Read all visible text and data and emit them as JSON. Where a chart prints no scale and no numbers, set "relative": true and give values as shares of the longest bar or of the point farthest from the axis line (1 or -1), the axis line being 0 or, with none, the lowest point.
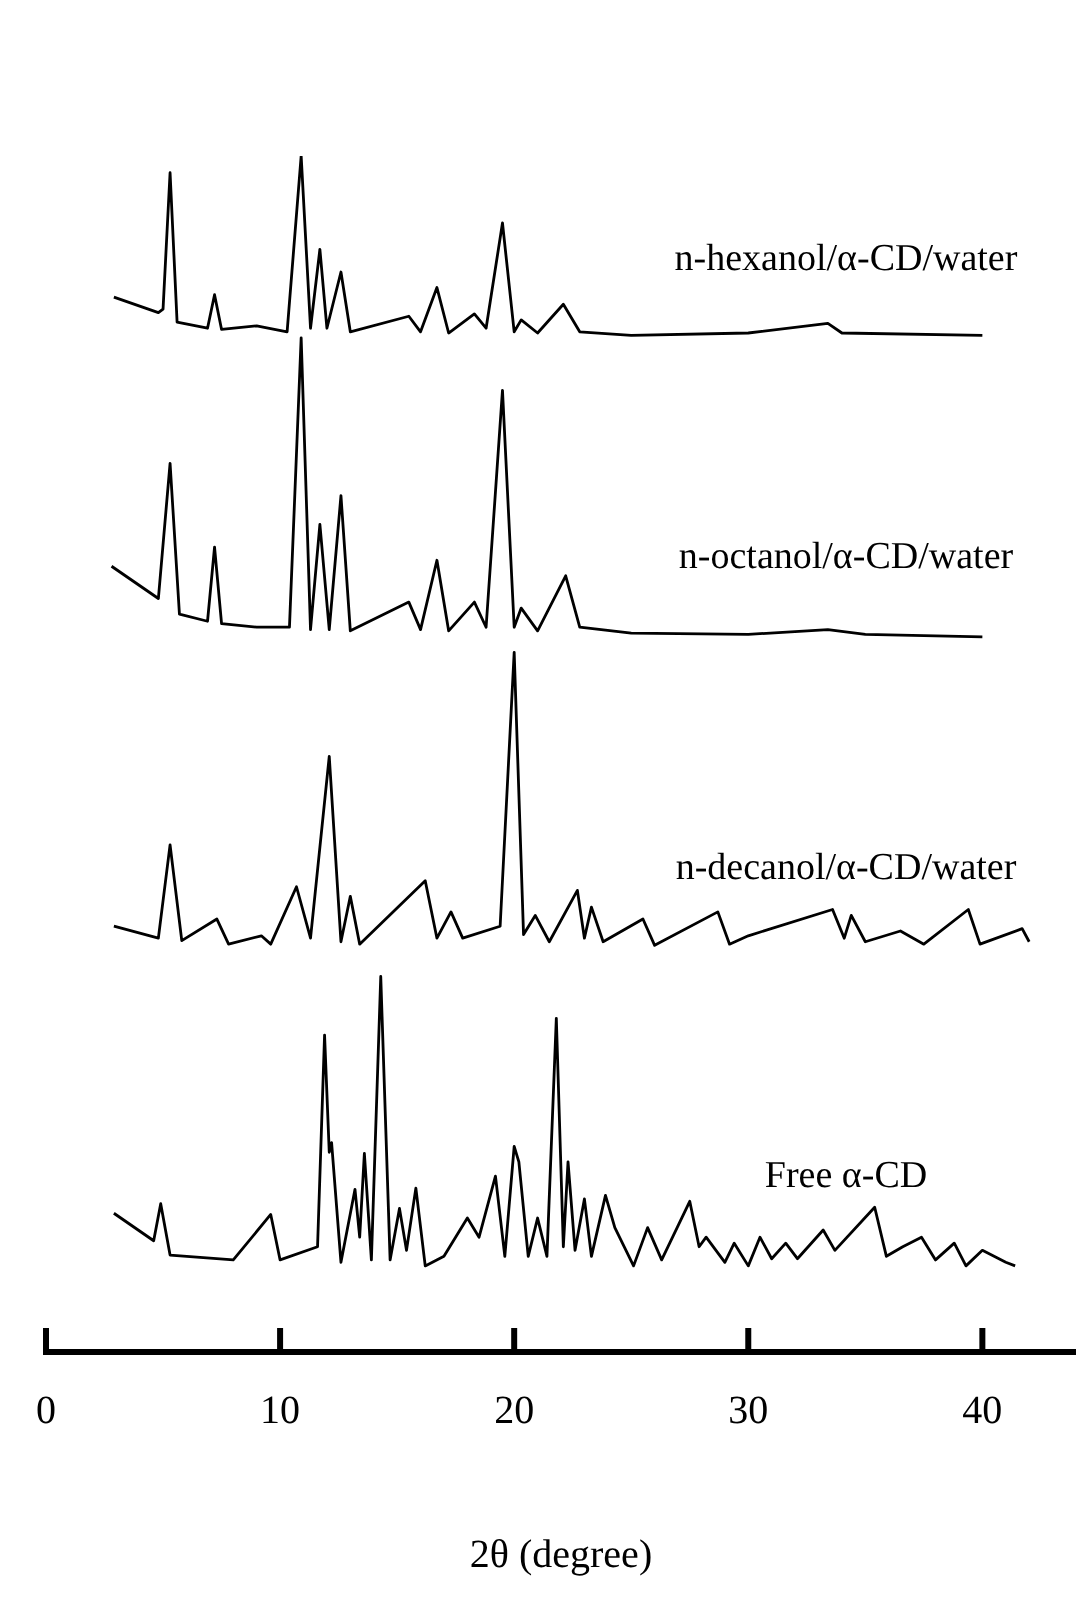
{
  "chart_data": {
    "type": "line",
    "relative": true,
    "xlabel": "2θ (degree)",
    "xlim": [
      0,
      44
    ],
    "xticks": [
      0,
      10,
      20,
      30,
      40
    ],
    "grid": false,
    "legend": false,
    "marker": "none",
    "line_style": "solid",
    "series": [
      {
        "name": "n-hexanol/α-CD/water",
        "color": "#000000",
        "x": [
          2.9,
          4.8,
          5.0,
          5.3,
          5.6,
          6.9,
          7.2,
          7.5,
          9.0,
          10.3,
          10.9,
          11.3,
          11.7,
          12.0,
          12.6,
          13.0,
          15.5,
          16.0,
          16.7,
          17.2,
          18.3,
          18.8,
          19.5,
          20.0,
          20.3,
          21.0,
          22.1,
          22.8,
          25,
          30,
          33.4,
          34,
          40
        ],
        "values": [
          0.882,
          0.869,
          0.872,
          0.986,
          0.861,
          0.856,
          0.884,
          0.855,
          0.858,
          0.853,
          1.0,
          0.856,
          0.922,
          0.856,
          0.903,
          0.853,
          0.866,
          0.853,
          0.89,
          0.852,
          0.868,
          0.856,
          0.944,
          0.853,
          0.863,
          0.852,
          0.876,
          0.853,
          0.85,
          0.852,
          0.86,
          0.852,
          0.85
        ]
      },
      {
        "name": "n-octanol/α-CD/water",
        "color": "#000000",
        "x": [
          2.8,
          4.8,
          5.3,
          5.7,
          6.9,
          7.2,
          7.5,
          9.0,
          10.4,
          10.9,
          11.3,
          11.7,
          12.1,
          12.6,
          13.0,
          15.5,
          16.0,
          16.7,
          17.2,
          18.3,
          18.8,
          19.5,
          20.0,
          20.3,
          21.0,
          22.2,
          22.8,
          25,
          30,
          33.4,
          35,
          40
        ],
        "values": [
          0.657,
          0.63,
          0.743,
          0.617,
          0.611,
          0.673,
          0.609,
          0.606,
          0.606,
          0.848,
          0.604,
          0.692,
          0.604,
          0.716,
          0.603,
          0.627,
          0.604,
          0.662,
          0.603,
          0.627,
          0.606,
          0.804,
          0.606,
          0.622,
          0.603,
          0.649,
          0.606,
          0.601,
          0.6,
          0.604,
          0.6,
          0.598
        ]
      },
      {
        "name": "n-decanol/α-CD/water",
        "color": "#000000",
        "x": [
          2.9,
          4.8,
          5.3,
          5.8,
          7.3,
          7.8,
          9.2,
          9.6,
          10.7,
          11.3,
          12.1,
          12.6,
          13.0,
          13.4,
          16.2,
          16.7,
          17.3,
          17.8,
          19.4,
          20.0,
          20.4,
          20.9,
          21.5,
          22.7,
          23.0,
          23.3,
          23.8,
          25.5,
          26,
          28.7,
          29.2,
          30,
          33.6,
          34.1,
          34.4,
          35,
          36.5,
          37.5,
          39.4,
          39.9,
          41.7,
          42
        ],
        "values": [
          0.356,
          0.346,
          0.424,
          0.344,
          0.362,
          0.341,
          0.348,
          0.341,
          0.389,
          0.346,
          0.498,
          0.343,
          0.381,
          0.341,
          0.394,
          0.346,
          0.368,
          0.346,
          0.356,
          0.585,
          0.349,
          0.365,
          0.343,
          0.386,
          0.346,
          0.372,
          0.343,
          0.362,
          0.34,
          0.368,
          0.341,
          0.348,
          0.37,
          0.346,
          0.365,
          0.343,
          0.352,
          0.341,
          0.37,
          0.341,
          0.354,
          0.343
        ]
      },
      {
        "name": "Free α-CD",
        "color": "#000000",
        "x": [
          2.9,
          4.6,
          4.9,
          5.3,
          8,
          9.6,
          10,
          11.6,
          11.9,
          12.1,
          12.2,
          12.6,
          13.2,
          13.4,
          13.6,
          13.9,
          14.3,
          14.7,
          15.1,
          15.4,
          15.8,
          16.2,
          17,
          18.0,
          18.5,
          19.2,
          19.6,
          20.0,
          20.2,
          20.6,
          21.0,
          21.4,
          21.8,
          22.1,
          22.3,
          22.6,
          23.0,
          23.3,
          23.9,
          24.3,
          25.1,
          25.7,
          26.3,
          27.5,
          27.9,
          28.2,
          29.0,
          29.4,
          30,
          30.5,
          31,
          31.6,
          32.1,
          33.2,
          33.7,
          35.4,
          35.9,
          36.6,
          37.4,
          38,
          38.8,
          39.3,
          40,
          41.0,
          41.4
        ],
        "values": [
          0.116,
          0.093,
          0.124,
          0.081,
          0.077,
          0.115,
          0.077,
          0.088,
          0.265,
          0.167,
          0.175,
          0.075,
          0.136,
          0.096,
          0.166,
          0.077,
          0.314,
          0.077,
          0.12,
          0.085,
          0.137,
          0.072,
          0.08,
          0.112,
          0.096,
          0.147,
          0.08,
          0.172,
          0.159,
          0.08,
          0.112,
          0.08,
          0.279,
          0.088,
          0.159,
          0.085,
          0.128,
          0.08,
          0.131,
          0.104,
          0.072,
          0.104,
          0.077,
          0.126,
          0.088,
          0.096,
          0.075,
          0.091,
          0.072,
          0.096,
          0.078,
          0.091,
          0.078,
          0.102,
          0.085,
          0.121,
          0.08,
          0.088,
          0.096,
          0.077,
          0.091,
          0.072,
          0.085,
          0.075,
          0.072
        ]
      }
    ]
  }
}
